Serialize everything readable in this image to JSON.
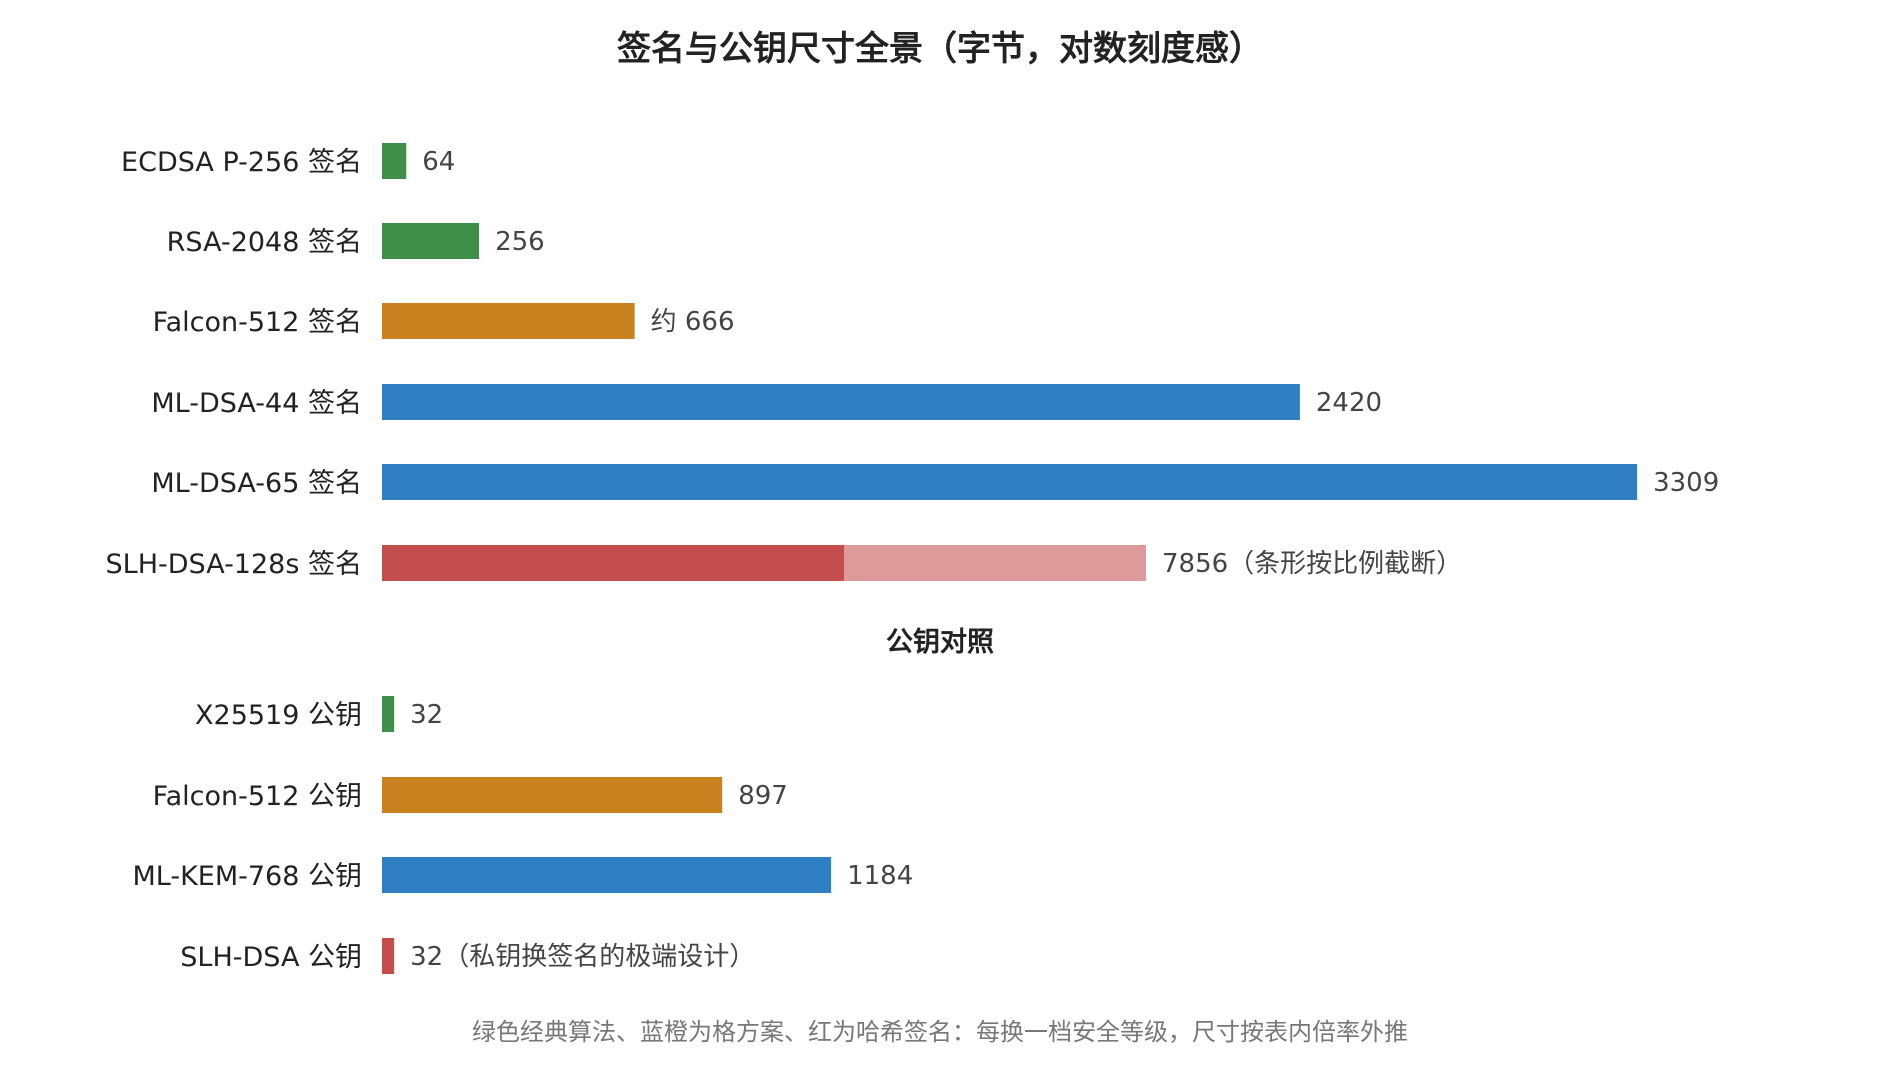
{
  "chart_data": {
    "type": "bar",
    "orientation": "horizontal",
    "title": "签名与公钥尺寸全景（字节，对数刻度感）",
    "footnote": "绿色经典算法、蓝橙为格方案、红为哈希签名：每换一档安全等级，尺寸按表内倍率外推",
    "groups": [
      {
        "name": "",
        "categories": [
          "ECDSA P-256 签名",
          "RSA-2048 签名",
          "Falcon-512 签名",
          "ML-DSA-44 签名",
          "ML-DSA-65 签名",
          "SLH-DSA-128s 签名"
        ],
        "values": [
          64,
          256,
          666,
          2420,
          3309,
          7856
        ],
        "value_labels": [
          "64",
          "256",
          "约 666",
          "2420",
          "3309",
          "7856（条形按比例截断）"
        ],
        "colors": [
          "#3f8f4a",
          "#3f8f4a",
          "#c9821f",
          "#2e7fc3",
          "#2e7fc3",
          "#c44d4d"
        ],
        "truncated": [
          false,
          false,
          false,
          false,
          false,
          true
        ]
      },
      {
        "name": "公钥对照",
        "categories": [
          "X25519 公钥",
          "Falcon-512 公钥",
          "ML-KEM-768 公钥",
          "SLH-DSA 公钥"
        ],
        "values": [
          32,
          897,
          1184,
          32
        ],
        "value_labels": [
          "32",
          "897",
          "1184",
          "32（私钥换签名的极端设计）"
        ],
        "colors": [
          "#3f8f4a",
          "#c9821f",
          "#2e7fc3",
          "#c44d4d"
        ],
        "truncated": [
          false,
          false,
          false,
          false
        ]
      }
    ],
    "colors": {
      "classic": "#3f8f4a",
      "lattice_blue": "#2e7fc3",
      "lattice_orange": "#c9821f",
      "hash": "#c44d4d",
      "hash_truncated_tail": "#dc9a9a"
    }
  }
}
